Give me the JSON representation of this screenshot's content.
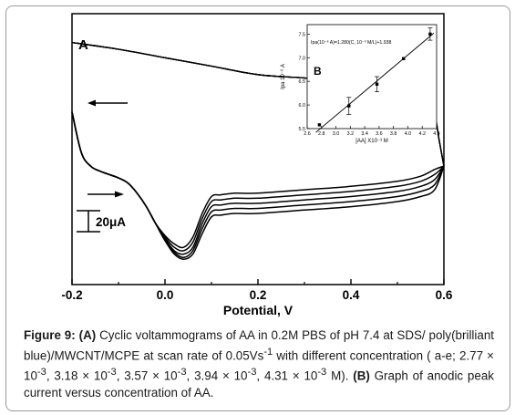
{
  "caption": {
    "fig": "Figure 9:",
    "a_tag": "(A)",
    "part1": "Cyclic voltammograms of AA in 0.2M PBS of pH 7.4 at SDS/ poly(brilliant blue)/MWCNT/MCPE at scan rate of 0.05Vs",
    "sup1": "-1",
    "part2": " with different concentration ( a-e; 2.77 × 10",
    "sup2": "-3",
    "part3": ", 3.18 × 10",
    "sup3": "-3",
    "part4": ", 3.57 × 10",
    "sup4": "-3",
    "part5": ", 3.94 × 10",
    "sup5": "-3",
    "part6": ", 4.31 × 10",
    "sup6": "-3",
    "part7": " M). ",
    "b_tag": "(B)",
    "part8": " Graph of anodic peak current versus concentration of AA."
  },
  "chart_data": [
    {
      "type": "line",
      "panel_label": "A",
      "xlabel": "Potential, V",
      "ylabel": "",
      "x_ticks": [
        "-0.2",
        "0.0",
        "0.2",
        "0.4",
        "0.6"
      ],
      "xlim": [
        -0.2,
        0.6
      ],
      "y_ticks_shown": false,
      "scale_bar_label": "20μA",
      "scale_bar_uA": 20,
      "current_units": "uA",
      "ylim_uA": [
        -60,
        100
      ],
      "series": [
        {
          "x_fwd": [
            -0.2,
            -0.18,
            -0.16,
            -0.14,
            -0.12,
            -0.1,
            -0.08,
            -0.06,
            -0.04,
            -0.02,
            0.0,
            0.02,
            0.04,
            0.06,
            0.08,
            0.1,
            0.12,
            0.15,
            0.2,
            0.3,
            0.4,
            0.5,
            0.55,
            0.58,
            0.6
          ],
          "y_fwd": [
            42,
            18,
            10,
            7,
            5,
            3,
            0,
            -6,
            -14,
            -24,
            -34,
            -42,
            -45,
            -42,
            -30,
            -20,
            -19,
            -18,
            -18,
            -16,
            -14,
            -11,
            -8,
            -4,
            10
          ],
          "x_rev": [
            0.6,
            0.59,
            0.58,
            0.56,
            0.53,
            0.5,
            0.45,
            0.4,
            0.3,
            0.2,
            0.1,
            0.0,
            -0.1,
            -0.2
          ],
          "y_rev": [
            10,
            25,
            40,
            50,
            55,
            57,
            59,
            60,
            62,
            64,
            69,
            74,
            79,
            83
          ]
        },
        {
          "x_fwd": [
            -0.2,
            -0.18,
            -0.16,
            -0.14,
            -0.12,
            -0.1,
            -0.08,
            -0.06,
            -0.04,
            -0.02,
            0.0,
            0.02,
            0.04,
            0.06,
            0.08,
            0.1,
            0.12,
            0.15,
            0.2,
            0.3,
            0.4,
            0.5,
            0.55,
            0.58,
            0.6
          ],
          "y_fwd": [
            42,
            18,
            10,
            7,
            5,
            3,
            0,
            -6,
            -14,
            -24,
            -34,
            -41,
            -44,
            -40,
            -27,
            -17,
            -16,
            -15,
            -15,
            -13,
            -11,
            -8,
            -5,
            -1,
            10
          ],
          "x_rev": [
            0.6,
            0.59,
            0.58,
            0.56,
            0.53,
            0.5,
            0.45,
            0.4,
            0.3,
            0.2,
            0.1,
            0.0,
            -0.1,
            -0.2
          ],
          "y_rev": [
            10,
            25,
            40,
            50,
            55,
            57,
            59,
            60,
            62,
            64,
            69,
            74,
            79,
            83
          ]
        },
        {
          "x_fwd": [
            -0.2,
            -0.18,
            -0.16,
            -0.14,
            -0.12,
            -0.1,
            -0.08,
            -0.06,
            -0.04,
            -0.02,
            0.0,
            0.02,
            0.04,
            0.06,
            0.08,
            0.1,
            0.12,
            0.15,
            0.2,
            0.3,
            0.4,
            0.5,
            0.55,
            0.58,
            0.6
          ],
          "y_fwd": [
            42,
            18,
            10,
            7,
            5,
            3,
            0,
            -6,
            -14,
            -24,
            -33,
            -40,
            -42,
            -38,
            -24,
            -14,
            -13,
            -12,
            -12,
            -10,
            -8,
            -5,
            -2,
            2,
            10
          ],
          "x_rev": [
            0.6,
            0.59,
            0.58,
            0.56,
            0.53,
            0.5,
            0.45,
            0.4,
            0.3,
            0.2,
            0.1,
            0.0,
            -0.1,
            -0.2
          ],
          "y_rev": [
            10,
            25,
            40,
            50,
            55,
            57,
            59,
            60,
            62,
            64,
            69,
            74,
            79,
            83
          ]
        },
        {
          "x_fwd": [
            -0.2,
            -0.18,
            -0.16,
            -0.14,
            -0.12,
            -0.1,
            -0.08,
            -0.06,
            -0.04,
            -0.02,
            0.0,
            0.02,
            0.04,
            0.06,
            0.08,
            0.1,
            0.12,
            0.15,
            0.2,
            0.3,
            0.4,
            0.5,
            0.55,
            0.58,
            0.6
          ],
          "y_fwd": [
            42,
            18,
            10,
            7,
            5,
            3,
            0,
            -6,
            -14,
            -24,
            -32,
            -38,
            -40,
            -35,
            -21,
            -11,
            -10,
            -9,
            -9,
            -7,
            -5,
            -2,
            1,
            5,
            10
          ],
          "x_rev": [
            0.6,
            0.59,
            0.58,
            0.56,
            0.53,
            0.5,
            0.45,
            0.4,
            0.3,
            0.2,
            0.1,
            0.0,
            -0.1,
            -0.2
          ],
          "y_rev": [
            10,
            25,
            40,
            50,
            55,
            57,
            59,
            60,
            62,
            64,
            69,
            74,
            79,
            83
          ]
        },
        {
          "x_fwd": [
            -0.2,
            -0.18,
            -0.16,
            -0.14,
            -0.12,
            -0.1,
            -0.08,
            -0.06,
            -0.04,
            -0.02,
            0.0,
            0.02,
            0.04,
            0.06,
            0.08,
            0.1,
            0.12,
            0.15,
            0.2,
            0.3,
            0.4,
            0.5,
            0.55,
            0.58,
            0.6
          ],
          "y_fwd": [
            42,
            18,
            10,
            7,
            5,
            3,
            0,
            -6,
            -14,
            -24,
            -31,
            -36,
            -38,
            -32,
            -18,
            -8,
            -7,
            -6,
            -6,
            -4,
            -2,
            1,
            4,
            8,
            10
          ],
          "x_rev": [
            0.6,
            0.59,
            0.58,
            0.56,
            0.53,
            0.5,
            0.45,
            0.4,
            0.3,
            0.2,
            0.1,
            0.0,
            -0.1,
            -0.2
          ],
          "y_rev": [
            10,
            25,
            40,
            50,
            55,
            57,
            59,
            60,
            62,
            64,
            69,
            74,
            79,
            83
          ]
        }
      ]
    },
    {
      "type": "scatter",
      "panel_label": "B",
      "equation": "Ipa(10⁻⁶ A)=1.280(C, 10⁻³ M/L)+1.938",
      "xlabel": "[AA] X10⁻³ M",
      "ylabel": "Ipa 10⁻⁶ A",
      "xlim": [
        2.6,
        4.4
      ],
      "ylim": [
        5.5,
        7.7
      ],
      "x_ticks": [
        "2.6",
        "2.8",
        "3.0",
        "3.2",
        "3.4",
        "3.6",
        "3.8",
        "4.0",
        "4.2",
        "4.4"
      ],
      "y_ticks": [
        "5.5",
        "6.0",
        "6.5",
        "7.0",
        "7.5"
      ],
      "points": [
        {
          "x": 2.77,
          "y": 5.58,
          "err": 0.02
        },
        {
          "x": 3.18,
          "y": 5.98,
          "err": 0.18
        },
        {
          "x": 3.57,
          "y": 6.44,
          "err": 0.16
        },
        {
          "x": 3.94,
          "y": 6.98,
          "err": 0.02
        },
        {
          "x": 4.31,
          "y": 7.5,
          "err": 0.13
        }
      ],
      "fit": {
        "slope": 1.28,
        "intercept": 1.938
      }
    }
  ]
}
